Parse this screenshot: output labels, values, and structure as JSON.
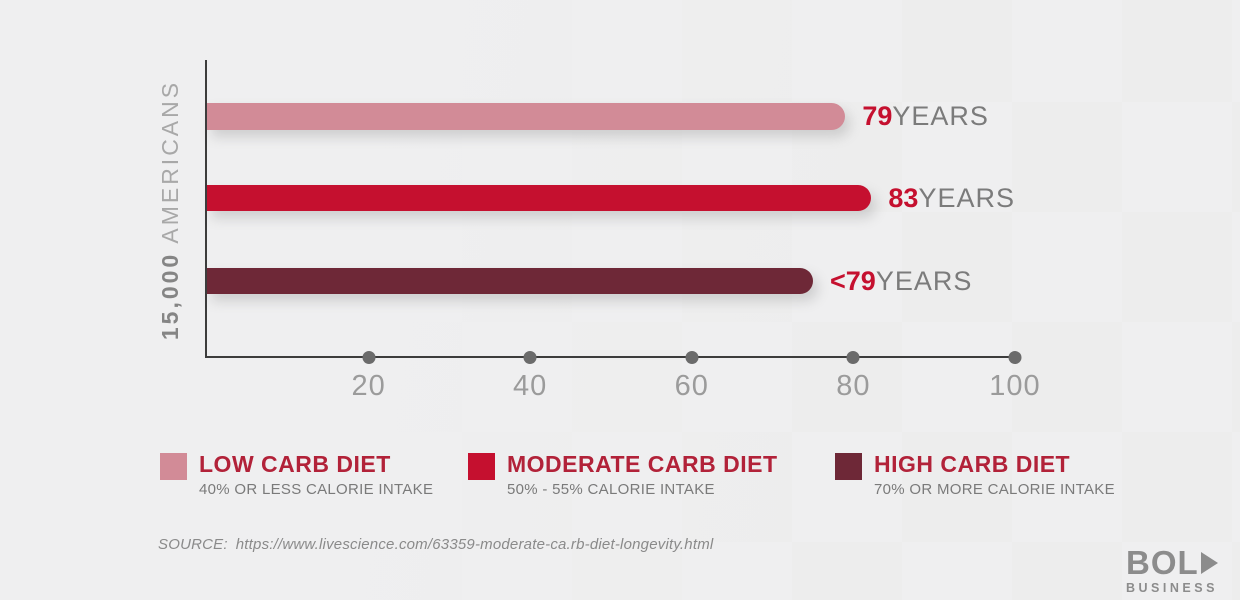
{
  "ylabel": {
    "bold_part": "15,000",
    "light_part": "AMERICANS"
  },
  "chart_data": {
    "type": "bar",
    "orientation": "horizontal",
    "title": "",
    "ylabel": "15,000 AMERICANS",
    "xlabel": "",
    "xlim": [
      0,
      100
    ],
    "x_ticks": [
      20,
      40,
      60,
      80,
      100
    ],
    "grid": false,
    "categories": [
      "Low Carb Diet",
      "Moderate Carb Diet",
      "High Carb Diet"
    ],
    "values": [
      79,
      83,
      75
    ],
    "colors": [
      "#d28b97",
      "#c5102f",
      "#6e2837"
    ],
    "value_labels": [
      {
        "number": "79",
        "unit": "YEARS"
      },
      {
        "number": "83",
        "unit": "YEARS"
      },
      {
        "number": "<79",
        "unit": "YEARS"
      }
    ],
    "legend_position": "bottom"
  },
  "axis_ticks": {
    "t0": "20",
    "t1": "40",
    "t2": "60",
    "t3": "80",
    "t4": "100"
  },
  "legend": [
    {
      "title": "LOW CARB DIET",
      "subtitle": "40% OR LESS CALORIE INTAKE",
      "color": "#d28b97"
    },
    {
      "title": "MODERATE CARB DIET",
      "subtitle": "50% - 55% CALORIE INTAKE",
      "color": "#c5102f"
    },
    {
      "title": "HIGH CARB DIET",
      "subtitle": "70% OR MORE CALORIE INTAKE",
      "color": "#6e2837"
    }
  ],
  "source": {
    "label": "SOURCE:",
    "url": "https://www.livescience.com/63359-moderate-ca.rb-diet-longevity.html"
  },
  "logo": {
    "line1": "BOL",
    "line2": "BUSINESS"
  }
}
